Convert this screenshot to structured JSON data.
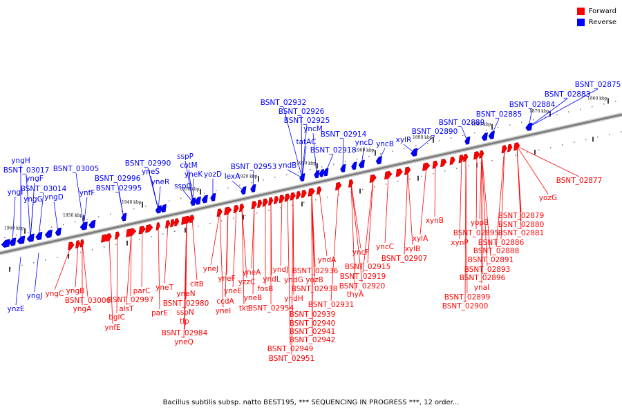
{
  "legend": {
    "forward_label": "Forward",
    "reverse_label": "Reverse",
    "forward_color": "#ff0000",
    "reverse_color": "#0000ff"
  },
  "caption": "Bacillus subtilis subsp. natto BEST195, *** SEQUENCING IN PROGRESS ***, 12 order...",
  "kbp_labels": [
    "1960 kbp",
    "1950 kbp",
    "1940 kbp",
    "1930 kbp",
    "1920 kbp",
    "1910 kbp",
    "1900 kbp",
    "1890 kbp",
    "1880 kbp",
    "1870 kbp",
    "1860 kbp"
  ],
  "reverse_genes": [
    "yngH",
    "BSNT_03017",
    "yngF",
    "yngI",
    "BSNT_03014",
    "yngG",
    "yngD",
    "BSNT_03005",
    "ynfF",
    "BSNT_02996",
    "BSNT_02990",
    "yneS",
    "BSNT_02995",
    "yneR",
    "sspP",
    "cotM",
    "yneK",
    "sspO",
    "yozD",
    "BSNT_02953",
    "lexA",
    "BSNT_02932",
    "BSNT_02926",
    "BSNT_02925",
    "yncM",
    "tatAC",
    "BSNT_02914",
    "BSNT_02918",
    "yndB",
    "yncD",
    "yncB",
    "xylR",
    "BSNT_02890",
    "BSNT_02889",
    "BSNT_02885",
    "BSNT_02884",
    "BSNT_02883",
    "BSNT_02875",
    "yngJ",
    "ynzE"
  ],
  "forward_genes": [
    "yngC",
    "yngB",
    "BSNT_03006",
    "yngA",
    "BSNT_02997",
    "parC",
    "alsT",
    "bglC",
    "ynfE",
    "yneT",
    "parE",
    "yneN",
    "BSNT_02980",
    "sspN",
    "tlp",
    "BSNT_02984",
    "yneQ",
    "citB",
    "yneJ",
    "yneF",
    "yneE",
    "ccdA",
    "yneI",
    "yneA",
    "yzzC",
    "yneB",
    "tkt",
    "fosB",
    "BSNT_02954",
    "yndJ",
    "yndL",
    "yndG",
    "yndH",
    "BSNT_02949",
    "BSNT_02951",
    "BSNT_02936",
    "yndA",
    "yozB",
    "BSNT_02938",
    "BSNT_02931",
    "BSNT_02939",
    "BSNT_02940",
    "BSNT_02941",
    "BSNT_02942",
    "yncF",
    "BSNT_02915",
    "BSNT_02919",
    "BSNT_02920",
    "thyA",
    "yncC",
    "xylA",
    "xylB",
    "BSNT_02907",
    "xynB",
    "xynP",
    "yopB",
    "BSNT_02895",
    "BSNT_02886",
    "BSNT_02888",
    "BSNT_02891",
    "BSNT_02893",
    "BSNT_02896",
    "ynaI",
    "BSNT_02899",
    "BSNT_02900",
    "BSNT_02879",
    "BSNT_02880",
    "BSNT_02881",
    "BSNT_02877",
    "yozG"
  ]
}
